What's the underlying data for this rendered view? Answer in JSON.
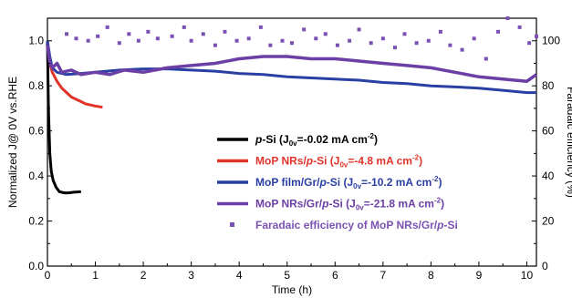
{
  "chart_data": {
    "type": "line",
    "title": "",
    "xlabel": "Time (h)",
    "ylabel": "Normalized J@ 0V vs.RHE",
    "y2label": "Faradaic efficiency (%)",
    "xlim": [
      0,
      10.2
    ],
    "ylim": [
      0,
      1.1
    ],
    "y2lim": [
      0,
      110
    ],
    "x_ticks": [
      "0",
      "1",
      "2",
      "3",
      "4",
      "5",
      "6",
      "7",
      "8",
      "9",
      "10"
    ],
    "y_ticks": [
      "0.0",
      "0.2",
      "0.4",
      "0.6",
      "0.8",
      "1.0"
    ],
    "y2_ticks": [
      "0",
      "20",
      "40",
      "60",
      "80",
      "100"
    ],
    "legend_position": "center-right",
    "series": [
      {
        "name": "p-Si (J0v=-0.02 mA cm-2)",
        "legend": {
          "prefix": "",
          "italic": "p",
          "main": "-Si (J",
          "sub": "0v",
          "mid": "=-0.02 mA cm",
          "sup": "-2",
          "end": ")"
        },
        "color": "#000000",
        "axis": "left",
        "x": [
          0,
          0.02,
          0.05,
          0.08,
          0.12,
          0.18,
          0.25,
          0.35,
          0.45,
          0.55,
          0.7
        ],
        "y": [
          1.0,
          0.7,
          0.5,
          0.42,
          0.38,
          0.35,
          0.33,
          0.325,
          0.325,
          0.328,
          0.33
        ]
      },
      {
        "name": "MoP NRs/p-Si (J0v=-4.8 mA cm-2)",
        "legend": {
          "prefix": "MoP NRs/",
          "italic": "p",
          "main": "-Si (J",
          "sub": "0v",
          "mid": "=-4.8 mA cm",
          "sup": "-2",
          "end": ")"
        },
        "color": "#e0342b",
        "axis": "left",
        "x": [
          0,
          0.05,
          0.1,
          0.2,
          0.3,
          0.4,
          0.5,
          0.6,
          0.7,
          0.8,
          0.9,
          1.0,
          1.15
        ],
        "y": [
          1.0,
          0.9,
          0.86,
          0.82,
          0.79,
          0.77,
          0.75,
          0.74,
          0.73,
          0.72,
          0.715,
          0.71,
          0.705
        ]
      },
      {
        "name": "MoP film/Gr/p-Si (J0v=-10.2 mA cm-2)",
        "legend": {
          "prefix": "MoP film/Gr/",
          "italic": "p",
          "main": "-Si (J",
          "sub": "0v",
          "mid": "=-10.2 mA cm",
          "sup": "-2",
          "end": ")"
        },
        "color": "#2a3fa3",
        "axis": "left",
        "x": [
          0,
          0.05,
          0.1,
          0.2,
          0.4,
          0.7,
          1,
          1.5,
          2,
          2.5,
          3,
          3.5,
          4,
          4.5,
          5,
          5.5,
          6,
          6.5,
          7,
          7.5,
          8,
          8.5,
          9,
          9.5,
          10,
          10.2
        ],
        "y": [
          1.0,
          0.93,
          0.88,
          0.86,
          0.85,
          0.855,
          0.86,
          0.87,
          0.875,
          0.875,
          0.87,
          0.865,
          0.855,
          0.85,
          0.84,
          0.835,
          0.83,
          0.825,
          0.815,
          0.81,
          0.8,
          0.795,
          0.79,
          0.78,
          0.77,
          0.77
        ]
      },
      {
        "name": "MoP NRs/Gr/p-Si (J0v=-21.8 mA cm-2)",
        "legend": {
          "prefix": "MoP NRs/Gr/",
          "italic": "p",
          "main": "-Si (J",
          "sub": "0v",
          "mid": "=-21.8 mA cm",
          "sup": "-2",
          "end": ")"
        },
        "color": "#6b3fa5",
        "axis": "left",
        "x": [
          0,
          0.05,
          0.1,
          0.2,
          0.3,
          0.5,
          0.7,
          1,
          1.3,
          1.6,
          2,
          2.5,
          3,
          3.5,
          4,
          4.5,
          5,
          5.5,
          6,
          6.5,
          7,
          7.5,
          8,
          8.5,
          9,
          9.5,
          10,
          10.2
        ],
        "y": [
          0.98,
          0.9,
          0.88,
          0.9,
          0.86,
          0.87,
          0.85,
          0.86,
          0.85,
          0.87,
          0.86,
          0.88,
          0.89,
          0.9,
          0.92,
          0.93,
          0.93,
          0.92,
          0.92,
          0.91,
          0.9,
          0.89,
          0.88,
          0.86,
          0.84,
          0.83,
          0.82,
          0.85
        ]
      },
      {
        "name": "Faradaic efficiency of MoP NRs/Gr/p-Si",
        "legend": {
          "prefix": "Faradaic efficiency of MoP NRs/Gr/",
          "italic": "p",
          "main": "-Si",
          "sub": "",
          "mid": "",
          "sup": "",
          "end": ""
        },
        "color": "#7b52b3",
        "axis": "right",
        "marker": "square",
        "x": [
          0.4,
          0.6,
          0.85,
          1.05,
          1.25,
          1.5,
          1.7,
          1.9,
          2.1,
          2.3,
          2.6,
          2.85,
          3.0,
          3.25,
          3.5,
          3.7,
          3.95,
          4.2,
          4.45,
          4.65,
          4.9,
          5.1,
          5.35,
          5.6,
          5.8,
          6.05,
          6.3,
          6.5,
          6.75,
          7.0,
          7.25,
          7.45,
          7.7,
          7.95,
          8.2,
          8.4,
          8.65,
          8.9,
          9.15,
          9.4,
          9.6,
          9.85,
          10.05,
          10.2
        ],
        "y": [
          103,
          101,
          100,
          102,
          106,
          99,
          103,
          100,
          104,
          101,
          102,
          106,
          100,
          103,
          98,
          104,
          100,
          101,
          106,
          98,
          100,
          99,
          105,
          101,
          103,
          98,
          100,
          105,
          99,
          101,
          97,
          103,
          99,
          100,
          104,
          98,
          96,
          101,
          92,
          104,
          110,
          106,
          99,
          102
        ]
      }
    ]
  }
}
